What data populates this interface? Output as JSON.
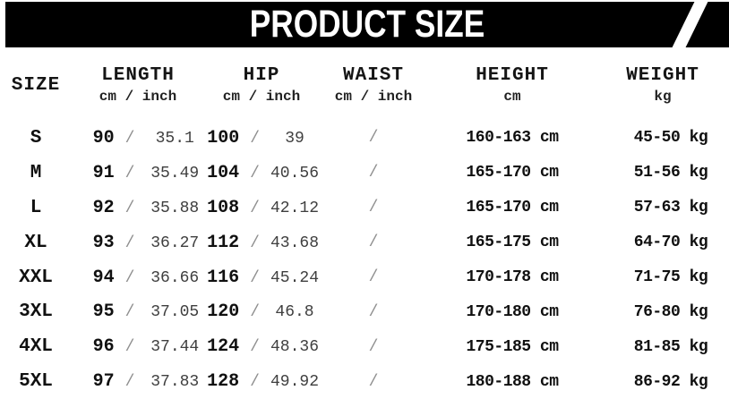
{
  "header": {
    "title": "PRODUCT SIZE"
  },
  "colors": {
    "banner_bg": "#000000",
    "banner_text": "#ffffff",
    "bold_value": "#111111",
    "inch_value": "#3f3f3f",
    "separator_gray": "#8f8f8f"
  },
  "chart_data": {
    "type": "table",
    "title": "PRODUCT SIZE",
    "separator": "/",
    "columns": [
      {
        "label": "SIZE",
        "unit": ""
      },
      {
        "label": "LENGTH",
        "unit": "cm / inch"
      },
      {
        "label": "HIP",
        "unit": "cm / inch"
      },
      {
        "label": "WAIST",
        "unit": "cm / inch"
      },
      {
        "label": "HEIGHT",
        "unit": "cm"
      },
      {
        "label": "WEIGHT",
        "unit": "kg"
      }
    ],
    "rows": [
      {
        "size": "S",
        "length_cm": "90",
        "length_inch": "35.1",
        "hip_cm": "100",
        "hip_inch": "39",
        "waist": "/",
        "height": "160-163 cm",
        "weight": "45-50 kg"
      },
      {
        "size": "M",
        "length_cm": "91",
        "length_inch": "35.49",
        "hip_cm": "104",
        "hip_inch": "40.56",
        "waist": "/",
        "height": "165-170 cm",
        "weight": "51-56 kg"
      },
      {
        "size": "L",
        "length_cm": "92",
        "length_inch": "35.88",
        "hip_cm": "108",
        "hip_inch": "42.12",
        "waist": "/",
        "height": "165-170 cm",
        "weight": "57-63 kg"
      },
      {
        "size": "XL",
        "length_cm": "93",
        "length_inch": "36.27",
        "hip_cm": "112",
        "hip_inch": "43.68",
        "waist": "/",
        "height": "165-175 cm",
        "weight": "64-70 kg"
      },
      {
        "size": "XXL",
        "length_cm": "94",
        "length_inch": "36.66",
        "hip_cm": "116",
        "hip_inch": "45.24",
        "waist": "/",
        "height": "170-178 cm",
        "weight": "71-75 kg"
      },
      {
        "size": "3XL",
        "length_cm": "95",
        "length_inch": "37.05",
        "hip_cm": "120",
        "hip_inch": "46.8",
        "waist": "/",
        "height": "170-180 cm",
        "weight": "76-80 kg"
      },
      {
        "size": "4XL",
        "length_cm": "96",
        "length_inch": "37.44",
        "hip_cm": "124",
        "hip_inch": "48.36",
        "waist": "/",
        "height": "175-185 cm",
        "weight": "81-85 kg"
      },
      {
        "size": "5XL",
        "length_cm": "97",
        "length_inch": "37.83",
        "hip_cm": "128",
        "hip_inch": "49.92",
        "waist": "/",
        "height": "180-188 cm",
        "weight": "86-92 kg"
      }
    ]
  }
}
